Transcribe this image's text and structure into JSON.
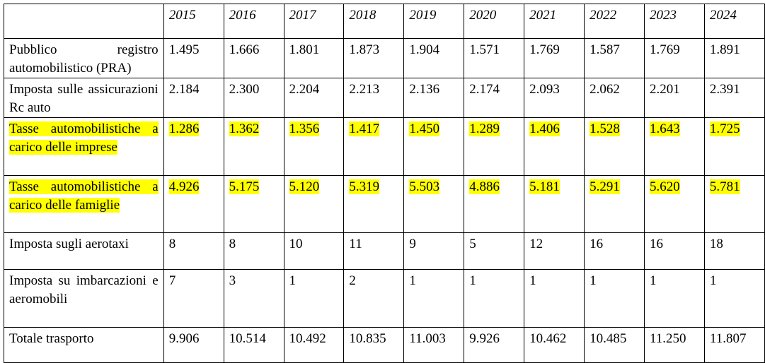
{
  "table": {
    "years": [
      "2015",
      "2016",
      "2017",
      "2018",
      "2019",
      "2020",
      "2021",
      "2022",
      "2023",
      "2024"
    ],
    "rows": [
      {
        "label": "Pubblico registro automobilistico (PRA)",
        "values": [
          "1.495",
          "1.666",
          "1.801",
          "1.873",
          "1.904",
          "1.571",
          "1.769",
          "1.587",
          "1.769",
          "1.891"
        ],
        "highlight": false
      },
      {
        "label": "Imposta sulle assicurazioni Rc auto",
        "values": [
          "2.184",
          "2.300",
          "2.204",
          "2.213",
          "2.136",
          "2.174",
          "2.093",
          "2.062",
          "2.201",
          "2.391"
        ],
        "highlight": false
      },
      {
        "label": "Tasse automobilistiche a carico delle imprese",
        "values": [
          "1.286",
          "1.362",
          "1.356",
          "1.417",
          "1.450",
          "1.289",
          "1.406",
          "1.528",
          "1.643",
          "1.725"
        ],
        "highlight": true
      },
      {
        "label": "Tasse automobilistiche a carico delle famiglie",
        "values": [
          "4.926",
          "5.175",
          "5.120",
          "5.319",
          "5.503",
          "4.886",
          "5.181",
          "5.291",
          "5.620",
          "5.781"
        ],
        "highlight": true
      },
      {
        "label": "Imposta sugli aerotaxi",
        "values": [
          "8",
          "8",
          "10",
          "11",
          "9",
          "5",
          "12",
          "16",
          "16",
          "18"
        ],
        "highlight": false
      },
      {
        "label": "Imposta su imbarcazioni e aeromobili",
        "values": [
          "7",
          "3",
          "1",
          "2",
          "1",
          "1",
          "1",
          "1",
          "1",
          "1"
        ],
        "highlight": false
      },
      {
        "label": "Totale trasporto",
        "values": [
          "9.906",
          "10.514",
          "10.492",
          "10.835",
          "11.003",
          "9.926",
          "10.462",
          "10.485",
          "11.250",
          "11.807"
        ],
        "highlight": false
      }
    ]
  }
}
